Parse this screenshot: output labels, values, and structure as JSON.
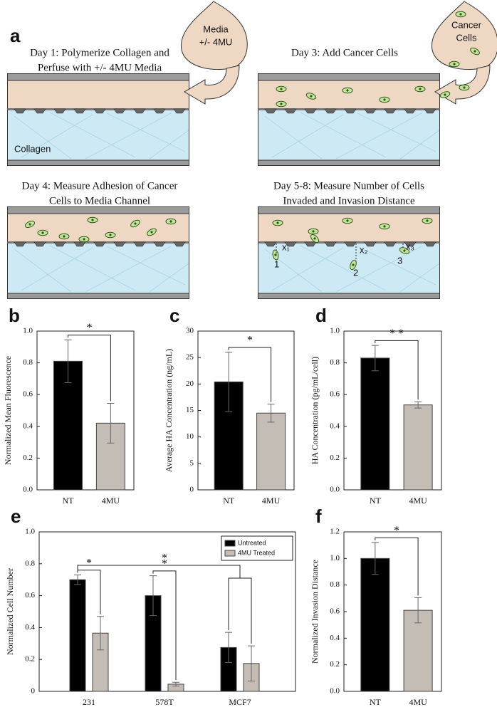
{
  "panel_a": {
    "label": "a",
    "steps": [
      {
        "title": [
          "Day 1: Polymerize Collagen and",
          "Perfuse with +/- 4MU Media"
        ],
        "bubble": [
          "Media",
          "+/- 4MU"
        ],
        "region": "Collagen"
      },
      {
        "title": [
          "Day 3: Add Cancer Cells"
        ],
        "bubble": [
          "Cancer",
          "Cells"
        ]
      },
      {
        "title": [
          "Day 4: Measure Adhesion of Cancer",
          "Cells to Media Channel"
        ]
      },
      {
        "title": [
          "Day 5-8: Measure Number of Cells",
          "Invaded and Invasion Distance"
        ],
        "distances": [
          "x₁",
          "x₂",
          "x₃"
        ],
        "cells": [
          "1",
          "2",
          "3"
        ]
      }
    ]
  },
  "chart_data": [
    {
      "panel": "b",
      "type": "bar",
      "ylabel": "Normalized Mean Fluorescence",
      "categories": [
        "NT",
        "4MU"
      ],
      "values": [
        0.81,
        0.42
      ],
      "errors": [
        0.135,
        0.125
      ],
      "colors": [
        "#000000",
        "#c3bdb5"
      ],
      "ylim": [
        0,
        1
      ],
      "yticks": [
        {
          "value": 0,
          "label": "0.0"
        },
        0.2,
        0.4,
        0.6,
        0.8,
        {
          "value": 1,
          "label": "1.0"
        }
      ],
      "annotations": [
        "*"
      ]
    },
    {
      "panel": "c",
      "type": "bar",
      "ylabel": "Average HA Concentration (ng/mL)",
      "categories": [
        "NT",
        "4MU"
      ],
      "values": [
        20.4,
        14.5
      ],
      "errors": [
        5.6,
        1.7
      ],
      "colors": [
        "#000000",
        "#c3bdb5"
      ],
      "ylim": [
        0,
        30
      ],
      "yticks": [
        0,
        5,
        10,
        15,
        20,
        25,
        30
      ],
      "annotations": [
        "*"
      ]
    },
    {
      "panel": "d",
      "type": "bar",
      "ylabel": "HA Concentration (pg/mL/cell)",
      "categories": [
        "NT",
        "4MU"
      ],
      "values": [
        0.83,
        0.535
      ],
      "errors": [
        0.08,
        0.02
      ],
      "colors": [
        "#000000",
        "#c3bdb5"
      ],
      "ylim": [
        0,
        1
      ],
      "yticks": [
        {
          "value": 0,
          "label": "0.0"
        },
        0.2,
        0.4,
        0.6,
        0.8,
        {
          "value": 1,
          "label": "1.0"
        }
      ],
      "annotations": [
        "* *"
      ]
    },
    {
      "panel": "e",
      "type": "grouped_bar",
      "ylabel": "Normalized Cell Number",
      "categories": [
        "231",
        "578T",
        "MCF7"
      ],
      "series": [
        {
          "name": "Untreated",
          "color": "#000000",
          "values": [
            0.7,
            0.6,
            0.275
          ],
          "errors": [
            0.03,
            0.125,
            0.095
          ]
        },
        {
          "name": "4MU Treated",
          "color": "#c3bdb5",
          "values": [
            0.365,
            0.045,
            0.175
          ],
          "errors": [
            0.105,
            0.012,
            0.11
          ]
        }
      ],
      "legend": "upper right",
      "ylim": [
        0,
        1
      ],
      "yticks": [
        0,
        0.2,
        0.4,
        0.6,
        0.8,
        {
          "value": 1,
          "label": "1.0"
        }
      ],
      "annotations": [
        "*",
        "*",
        "*"
      ]
    },
    {
      "panel": "f",
      "type": "bar",
      "ylabel": "Normalized Invasion Distance",
      "categories": [
        "NT",
        "4MU"
      ],
      "values": [
        1.0,
        0.61
      ],
      "errors": [
        0.12,
        0.095
      ],
      "colors": [
        "#000000",
        "#c3bdb5"
      ],
      "ylim": [
        0,
        1.2
      ],
      "yticks": [
        {
          "value": 0,
          "label": "0.0"
        },
        0.2,
        0.4,
        0.6,
        0.8,
        {
          "value": 1,
          "label": "1.0"
        },
        1.2
      ],
      "annotations": [
        "*"
      ]
    }
  ]
}
